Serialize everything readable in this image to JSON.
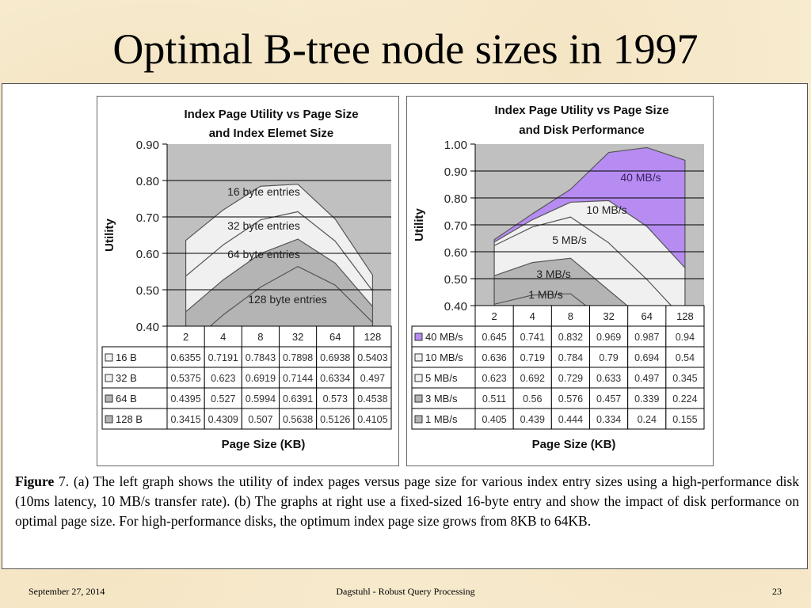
{
  "slide": {
    "title": "Optimal B-tree node sizes in 1997",
    "footer_date": "September 27, 2014",
    "footer_center": "Dagstuhl - Robust Query Processing",
    "footer_page": "23"
  },
  "caption": {
    "label": "Figure",
    "number": " 7",
    "text": ". (a) The left graph shows the utility of index pages versus page size for various index entry sizes using a high-performance disk (10ms latency, 10 MB/s transfer rate).  (b) The graphs at right use a fixed-sized 16-byte entry and show the impact of disk performance on optimal page size.  For high-performance disks, the optimum index page size grows from 8KB to 64KB."
  },
  "colors": {
    "plot_bg": "#c0c0c0",
    "light_fill": "#f0f0f0",
    "mid_fill": "#b4b4b4",
    "purple_fill": "#b68cf2"
  },
  "chart_data": [
    {
      "type": "area",
      "title": "Index Page Utility vs Page Size and Index Elemet Size",
      "title_lines": [
        "Index Page Utility vs Page Size",
        "and Index Elemet Size"
      ],
      "xlabel": "Page Size (KB)",
      "ylabel": "Utility",
      "categories": [
        "2",
        "4",
        "8",
        "32",
        "64",
        "128"
      ],
      "ylim": [
        0.4,
        0.9
      ],
      "yticks": [
        "0.90",
        "0.80",
        "0.70",
        "0.60",
        "0.50",
        "0.40"
      ],
      "grid": true,
      "legend": "data-table",
      "series": [
        {
          "name": "16 B",
          "label": "16 byte entries",
          "fill": "light",
          "values": [
            0.6355,
            0.7191,
            0.7843,
            0.7898,
            0.6938,
            0.5403
          ]
        },
        {
          "name": "32 B",
          "label": "32 byte entries",
          "fill": "light",
          "values": [
            0.5375,
            0.623,
            0.6919,
            0.7144,
            0.6334,
            0.497
          ]
        },
        {
          "name": "64 B",
          "label": "64 byte entries",
          "fill": "mid",
          "values": [
            0.4395,
            0.527,
            0.5994,
            0.6391,
            0.573,
            0.4538
          ]
        },
        {
          "name": "128 B",
          "label": "128 byte entries",
          "fill": "mid",
          "values": [
            0.3415,
            0.4309,
            0.507,
            0.5638,
            0.5126,
            0.4105
          ]
        }
      ],
      "table_values": [
        [
          "0.6355",
          "0.7191",
          "0.7843",
          "0.7898",
          "0.6938",
          "0.5403"
        ],
        [
          "0.5375",
          "0.623",
          "0.6919",
          "0.7144",
          "0.6334",
          "0.497"
        ],
        [
          "0.4395",
          "0.527",
          "0.5994",
          "0.6391",
          "0.573",
          "0.4538"
        ],
        [
          "0.3415",
          "0.4309",
          "0.507",
          "0.5638",
          "0.5126",
          "0.4105"
        ]
      ]
    },
    {
      "type": "area",
      "title": "Index Page Utility vs Page Size and Disk Performance",
      "title_lines": [
        "Index Page Utility vs Page Size",
        "and Disk Performance"
      ],
      "xlabel": "Page Size (KB)",
      "ylabel": "Utility",
      "categories": [
        "2",
        "4",
        "8",
        "32",
        "64",
        "128"
      ],
      "ylim": [
        0.4,
        1.0
      ],
      "yticks": [
        "1.00",
        "0.90",
        "0.80",
        "0.70",
        "0.60",
        "0.50",
        "0.40"
      ],
      "grid": true,
      "legend": "data-table",
      "series": [
        {
          "name": "40 MB/s",
          "label": "40 MB/s",
          "fill": "purple",
          "values": [
            0.645,
            0.741,
            0.832,
            0.969,
            0.987,
            0.94
          ]
        },
        {
          "name": "10 MB/s",
          "label": "10 MB/s",
          "fill": "light",
          "values": [
            0.636,
            0.719,
            0.784,
            0.79,
            0.694,
            0.54
          ]
        },
        {
          "name": "5 MB/s",
          "label": "5 MB/s",
          "fill": "light",
          "values": [
            0.623,
            0.692,
            0.729,
            0.633,
            0.497,
            0.345
          ]
        },
        {
          "name": "3 MB/s",
          "label": "3 MB/s",
          "fill": "mid",
          "values": [
            0.511,
            0.56,
            0.576,
            0.457,
            0.339,
            0.224
          ]
        },
        {
          "name": "1 MB/s",
          "label": "1 MB/s",
          "fill": "mid",
          "values": [
            0.405,
            0.439,
            0.444,
            0.334,
            0.24,
            0.155
          ]
        }
      ],
      "table_values": [
        [
          "0.645",
          "0.741",
          "0.832",
          "0.969",
          "0.987",
          "0.94"
        ],
        [
          "0.636",
          "0.719",
          "0.784",
          "0.79",
          "0.694",
          "0.54"
        ],
        [
          "0.623",
          "0.692",
          "0.729",
          "0.633",
          "0.497",
          "0.345"
        ],
        [
          "0.511",
          "0.56",
          "0.576",
          "0.457",
          "0.339",
          "0.224"
        ],
        [
          "0.405",
          "0.439",
          "0.444",
          "0.334",
          "0.24",
          "0.155"
        ]
      ]
    }
  ]
}
